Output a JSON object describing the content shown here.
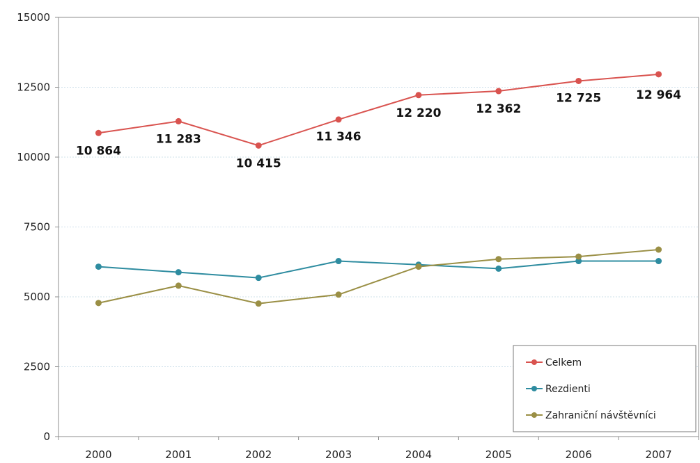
{
  "chart_data": {
    "type": "line",
    "title": "",
    "xlabel": "",
    "ylabel": "",
    "categories": [
      "2000",
      "2001",
      "2002",
      "2003",
      "2004",
      "2005",
      "2006",
      "2007"
    ],
    "ylim": [
      0,
      15000
    ],
    "yticks": [
      "0",
      "2500",
      "5000",
      "7500",
      "10000",
      "12500",
      "15000"
    ],
    "grid": true,
    "legend_position": "bottom-right",
    "series": [
      {
        "name": "Celkem",
        "color": "#d9534f",
        "values": [
          10864,
          11283,
          10415,
          11346,
          12220,
          12362,
          12725,
          12964
        ],
        "labels": [
          "10 864",
          "11 283",
          "10 415",
          "11 346",
          "12 220",
          "12 362",
          "12 725",
          "12 964"
        ]
      },
      {
        "name": "Rezdienti",
        "color": "#2e8ca0",
        "values": [
          6080,
          5880,
          5680,
          6280,
          6150,
          6010,
          6280,
          6280
        ]
      },
      {
        "name": "Zahraniční návštěvníci",
        "color": "#9a8f45",
        "values": [
          4780,
          5400,
          4760,
          5080,
          6080,
          6350,
          6440,
          6690
        ]
      }
    ]
  }
}
